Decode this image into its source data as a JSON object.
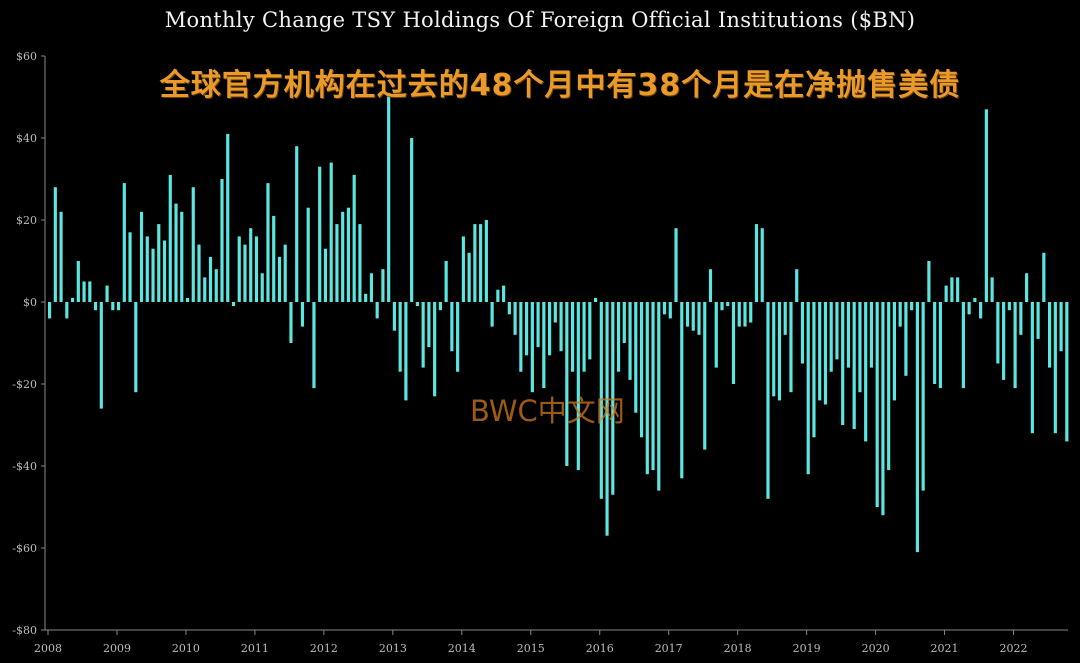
{
  "chart_data": {
    "type": "bar",
    "title": "Monthly Change TSY Holdings Of Foreign Official Institutions ($BN)",
    "subtitle": "全球官方机构在过去的48个月中有38个月是在净抛售美债",
    "watermark": "BWC中文网",
    "ylim": [
      -80,
      60
    ],
    "yticks": [
      60,
      40,
      20,
      0,
      -20,
      -40,
      -60,
      -80
    ],
    "ytick_labels": [
      "$60",
      "$40",
      "$20",
      "$0",
      "-$20",
      "-$40",
      "-$60",
      "-$80"
    ],
    "xticks": [
      "2008",
      "2009",
      "2010",
      "2011",
      "2012",
      "2013",
      "2014",
      "2015",
      "2016",
      "2017",
      "2018",
      "2019",
      "2020",
      "2021",
      "2022"
    ],
    "grid": false,
    "bar_color": "#5ce6e0",
    "x_start": "2008-01",
    "values": [
      -4,
      28,
      22,
      -4,
      1,
      10,
      5,
      5,
      -2,
      -26,
      4,
      -2,
      -2,
      29,
      17,
      -22,
      22,
      16,
      13,
      19,
      15,
      31,
      24,
      22,
      1,
      28,
      14,
      6,
      11,
      8,
      30,
      41,
      -1,
      16,
      14,
      18,
      16,
      7,
      29,
      21,
      11,
      14,
      -10,
      38,
      -6,
      23,
      -21,
      33,
      13,
      34,
      19,
      22,
      23,
      31,
      19,
      2,
      7,
      -4,
      8,
      51,
      -7,
      -17,
      -24,
      40,
      -1,
      -16,
      -11,
      -23,
      -2,
      10,
      -12,
      -17,
      16,
      12,
      19,
      19,
      20,
      -6,
      3,
      4,
      -3,
      -8,
      -17,
      -13,
      -22,
      -11,
      -21,
      -13,
      -5,
      -12,
      -40,
      -17,
      -41,
      -17,
      -14,
      1,
      -48,
      -57,
      -47,
      -17,
      -10,
      -19,
      -27,
      -33,
      -42,
      -41,
      -46,
      -3,
      -4,
      18,
      -43,
      -6,
      -7,
      -8,
      -36,
      8,
      -16,
      -2,
      -1,
      -20,
      -6,
      -6,
      -5,
      19,
      18,
      -48,
      -23,
      -24,
      -8,
      -22,
      8,
      -15,
      -42,
      -33,
      -24,
      -25,
      -17,
      -14,
      -30,
      -16,
      -31,
      -22,
      -34,
      -16,
      -50,
      -52,
      -41,
      -24,
      -6,
      -18,
      -2,
      -61,
      -46,
      10,
      -20,
      -21,
      4,
      6,
      6,
      -21,
      -3,
      1,
      -4,
      47,
      6,
      -15,
      -19,
      -2,
      -21,
      -8,
      7,
      -32,
      -9,
      12,
      -16,
      -32,
      -12,
      -34
    ]
  }
}
